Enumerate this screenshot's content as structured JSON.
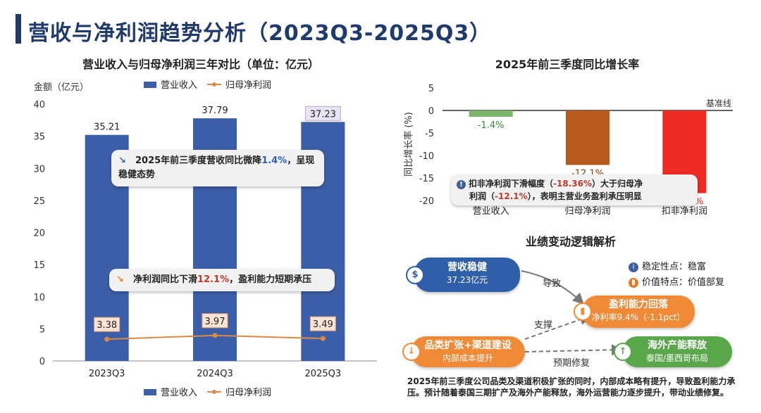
{
  "page_title": "营收与净利润趋势分析（2023Q3-2025Q3）",
  "left_chart": {
    "title": "营业收入与归母净利润三年对比（单位：亿元）",
    "ylabel": "金额（亿元）",
    "legend": [
      "营业收入",
      "归母净利润"
    ],
    "callout1": {
      "pre": "2025年前三季度营收同比微降",
      "hl": "1.4%",
      "post": "，呈现稳健态势"
    },
    "callout2": {
      "pre": "净利润同比下滑",
      "hl": "12.1%",
      "post": "，盈利能力短期承压"
    }
  },
  "right_chart": {
    "title": "2025年前三季度同比增长率",
    "ylabel": "同比增长率 (%)",
    "baseline_label": "基准线",
    "callout": {
      "l1a": "扣非净利润下滑幅度（",
      "l1b": "-18.36%",
      "l1c": "）大于归母净",
      "l2a": "利润（",
      "l2b": "-12.1%",
      "l2c": "），表明主营业务盈利承压明显"
    }
  },
  "logic": {
    "title": "业绩变动逻辑解析",
    "node_revenue": {
      "title": "营收稳健",
      "sub": "37.23亿元"
    },
    "node_profit": {
      "title": "盈利能力回落",
      "sub": "净利率9.4%（-1.1pct）"
    },
    "node_expand": {
      "title": "品类扩张+渠道建设",
      "sub": "内部成本提升"
    },
    "node_overseas": {
      "title": "海外产能释放",
      "sub": "泰国/墨西哥布局"
    },
    "arrow_lead": "导致",
    "arrow_support": "支撑",
    "arrow_expect": "预期修复",
    "info1": "稳定性点：稳富",
    "info2": "价值特点：价值部复",
    "note": "2025年前三季度公司品类及渠道积极扩张的同时，内部成本略有提升，导致盈利能力承压。预计随着泰国三期扩产及海外产能释放，海外运营能力逐步提升，带动业绩修复。"
  },
  "chart_data": [
    {
      "type": "bar",
      "title": "营业收入与归母净利润三年对比（单位：亿元）",
      "categories": [
        "2023Q3",
        "2024Q3",
        "2025Q3"
      ],
      "ylabel": "金额（亿元）",
      "ylim": [
        0,
        40
      ],
      "yticks": [
        0,
        5,
        10,
        15,
        20,
        25,
        30,
        35,
        40
      ],
      "series": [
        {
          "name": "营业收入",
          "kind": "bar",
          "values": [
            35.21,
            37.79,
            37.23
          ],
          "color": "#3c5ea8"
        },
        {
          "name": "归母净利润",
          "kind": "line",
          "values": [
            3.38,
            3.97,
            3.49
          ],
          "color": "#d98a4a"
        }
      ],
      "labels_revenue": [
        "35.21",
        "37.79",
        "37.23"
      ],
      "labels_profit": [
        "3.38",
        "3.97",
        "3.49"
      ]
    },
    {
      "type": "bar",
      "title": "2025年前三季度同比增长率",
      "categories": [
        "营业收入",
        "归母净利润",
        "扣非净利润"
      ],
      "ylabel": "同比增长率 (%)",
      "ylim": [
        -20,
        5
      ],
      "yticks": [
        5,
        0,
        -5,
        -10,
        -15,
        -20
      ],
      "values": [
        -1.4,
        -12.1,
        -18.36
      ],
      "labels": [
        "-1.4%",
        "-12.1%",
        "-18.36%"
      ],
      "colors": [
        "#7ab56a",
        "#b85a1e",
        "#ee2a24"
      ],
      "label_colors": [
        "#3f8a3a",
        "#8a3d12",
        "#d4231c"
      ]
    }
  ]
}
